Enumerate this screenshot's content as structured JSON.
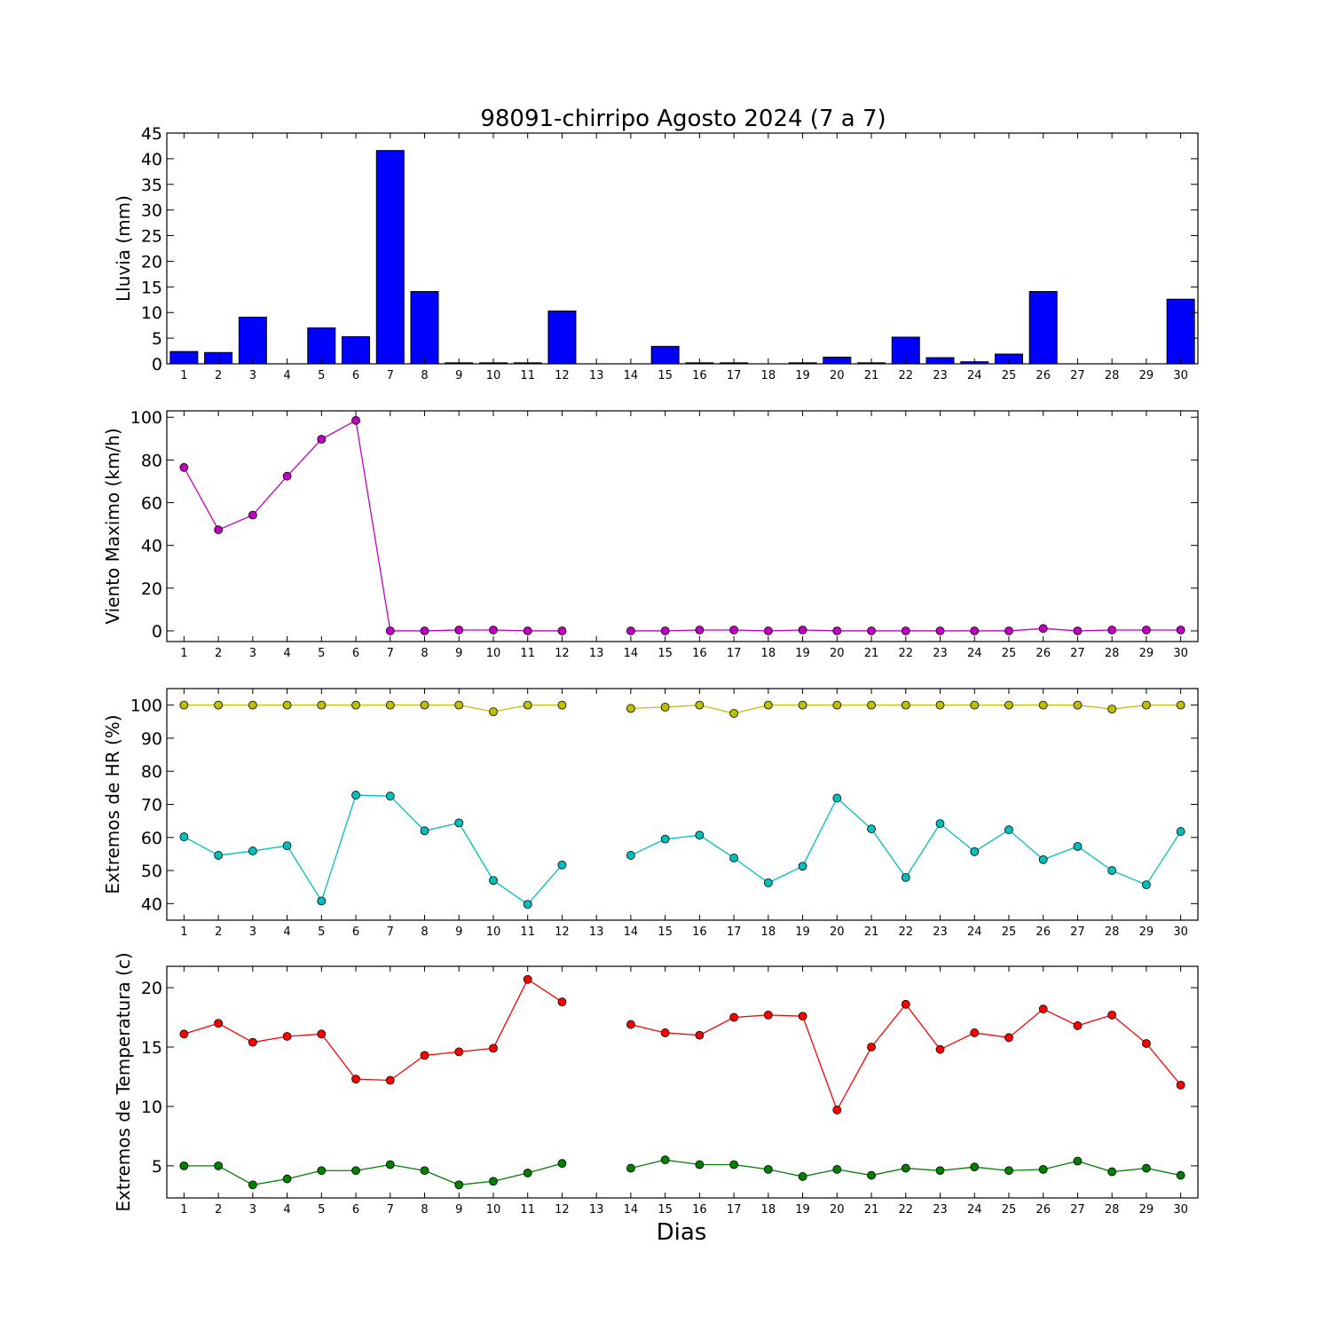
{
  "chart_title": "98091-chirripo Agosto 2024  (7 a 7)",
  "x_axis_label": "Dias",
  "chart_data": [
    {
      "type": "bar",
      "ylabel": "Lluvia (mm)",
      "ylim": [
        0,
        45
      ],
      "yticks": [
        0,
        5,
        10,
        15,
        20,
        25,
        30,
        35,
        40,
        45
      ],
      "categories": [
        1,
        2,
        3,
        4,
        5,
        6,
        7,
        8,
        9,
        10,
        11,
        12,
        13,
        14,
        15,
        16,
        17,
        18,
        19,
        20,
        21,
        22,
        23,
        24,
        25,
        26,
        27,
        28,
        29,
        30
      ],
      "xlim": [
        0.5,
        30.5
      ],
      "series": [
        {
          "color": "#0000ff",
          "values": [
            2.4,
            2.2,
            9.1,
            0,
            7.0,
            5.3,
            41.6,
            14.1,
            0.2,
            0.2,
            0.2,
            10.3,
            0,
            0,
            3.4,
            0.2,
            0.2,
            0,
            0.2,
            1.3,
            0.2,
            5.2,
            1.2,
            0.4,
            1.9,
            14.1,
            0,
            0,
            0,
            12.6
          ]
        }
      ]
    },
    {
      "type": "line",
      "ylabel": "Viento Maximo (km/h)",
      "ylim": [
        -5,
        103
      ],
      "yticks": [
        0,
        20,
        40,
        60,
        80,
        100
      ],
      "categories": [
        1,
        2,
        3,
        4,
        5,
        6,
        7,
        8,
        9,
        10,
        11,
        12,
        13,
        14,
        15,
        16,
        17,
        18,
        19,
        20,
        21,
        22,
        23,
        24,
        25,
        26,
        27,
        28,
        29,
        30
      ],
      "xlim": [
        0.5,
        30.5
      ],
      "series": [
        {
          "color": "#bf00bf",
          "values": [
            76.5,
            47.3,
            54.2,
            72.4,
            89.7,
            98.5,
            0,
            0,
            0.4,
            0.4,
            0,
            0,
            null,
            0,
            0,
            0.4,
            0.4,
            0,
            0.4,
            0,
            0,
            0,
            0,
            0,
            0,
            1.1,
            0,
            0.4,
            0.4,
            0.4
          ]
        }
      ]
    },
    {
      "type": "line",
      "ylabel": "Extremos de HR (%)",
      "ylim": [
        35,
        105
      ],
      "yticks": [
        40,
        50,
        60,
        70,
        80,
        90,
        100
      ],
      "categories": [
        1,
        2,
        3,
        4,
        5,
        6,
        7,
        8,
        9,
        10,
        11,
        12,
        13,
        14,
        15,
        16,
        17,
        18,
        19,
        20,
        21,
        22,
        23,
        24,
        25,
        26,
        27,
        28,
        29,
        30
      ],
      "xlim": [
        0.5,
        30.5
      ],
      "series": [
        {
          "color": "#bfbf00",
          "values": [
            100,
            100,
            100,
            100,
            100,
            100,
            100,
            100,
            100,
            98,
            100,
            100,
            null,
            99,
            99.4,
            100,
            97.5,
            100,
            100,
            100,
            100,
            100,
            100,
            100,
            100,
            100,
            100,
            98.8,
            100,
            100
          ]
        },
        {
          "color": "#00bfbf",
          "values": [
            60.2,
            54.6,
            55.9,
            57.5,
            40.8,
            72.8,
            72.5,
            62,
            64.4,
            47,
            39.8,
            51.7,
            null,
            54.6,
            59.5,
            60.7,
            53.8,
            46.3,
            51.3,
            71.9,
            62.6,
            47.9,
            64.2,
            55.7,
            62.3,
            53.3,
            57.3,
            50,
            45.7,
            61.8
          ]
        }
      ]
    },
    {
      "type": "line",
      "ylabel": "Extremos de Temperatura (c)",
      "ylim": [
        2.3,
        21.8
      ],
      "yticks": [
        5,
        10,
        15,
        20
      ],
      "categories": [
        1,
        2,
        3,
        4,
        5,
        6,
        7,
        8,
        9,
        10,
        11,
        12,
        13,
        14,
        15,
        16,
        17,
        18,
        19,
        20,
        21,
        22,
        23,
        24,
        25,
        26,
        27,
        28,
        29,
        30
      ],
      "xlim": [
        0.5,
        30.5
      ],
      "series": [
        {
          "color": "#ff0000",
          "values": [
            16.1,
            17,
            15.4,
            15.9,
            16.1,
            12.3,
            12.2,
            14.3,
            14.6,
            14.9,
            20.7,
            18.8,
            null,
            16.9,
            16.2,
            16,
            17.5,
            17.7,
            17.6,
            9.7,
            15,
            18.6,
            14.8,
            16.2,
            15.8,
            18.2,
            16.8,
            17.7,
            15.3,
            11.8
          ]
        },
        {
          "color": "#007f00",
          "values": [
            5,
            5,
            3.4,
            3.9,
            4.6,
            4.6,
            5.1,
            4.6,
            3.4,
            3.7,
            4.4,
            5.2,
            null,
            4.8,
            5.5,
            5.1,
            5.1,
            4.7,
            4.1,
            4.7,
            4.2,
            4.8,
            4.6,
            4.9,
            4.6,
            4.7,
            5.4,
            4.5,
            4.8,
            4.2
          ]
        }
      ]
    }
  ]
}
